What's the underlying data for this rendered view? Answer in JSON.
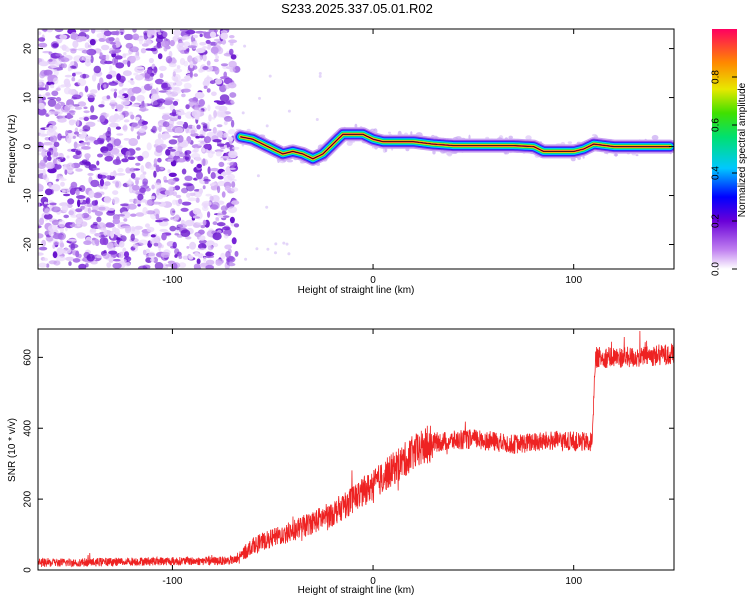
{
  "figure": {
    "title": "S233.2025.337.05.01.R02"
  },
  "colorbar": {
    "label": "Normalized spectral amplitude",
    "ticks": [
      "0.0",
      "0.2",
      "0.4",
      "0.6",
      "0.8"
    ],
    "range": [
      0,
      1
    ]
  },
  "chart_data": [
    {
      "type": "heatmap",
      "title": "",
      "xlabel": "Height of straight line (km)",
      "ylabel": "Frequency (Hz)",
      "xlim": [
        -167,
        150
      ],
      "ylim": [
        -25,
        24
      ],
      "xticks": [
        -100,
        0,
        100
      ],
      "xtick_labels": [
        "-100",
        "0",
        "100"
      ],
      "yticks": [
        -20,
        -10,
        0,
        10,
        20
      ],
      "ytick_labels": [
        "-20",
        "-10",
        "0",
        "10",
        "20"
      ],
      "noise_region_x": [
        -167,
        -68
      ],
      "ridge": {
        "x": [
          -66,
          -60,
          -55,
          -50,
          -45,
          -40,
          -35,
          -30,
          -25,
          -20,
          -15,
          -10,
          -5,
          0,
          5,
          10,
          20,
          30,
          40,
          50,
          60,
          70,
          80,
          85,
          90,
          100,
          105,
          110,
          120,
          130,
          140,
          148
        ],
        "frequency": [
          2.0,
          1.5,
          0.5,
          -0.5,
          -1.5,
          -1.0,
          -1.5,
          -2.5,
          -1.5,
          0.5,
          2.5,
          2.5,
          2.5,
          1.5,
          1.0,
          1.0,
          1.0,
          0.5,
          0.2,
          0.2,
          0.2,
          0.2,
          0.0,
          -1.0,
          -1.0,
          -1.0,
          -0.5,
          0.5,
          0.0,
          0.0,
          0.0,
          0.0
        ]
      }
    },
    {
      "type": "line",
      "title": "",
      "xlabel": "Height of straight line (km)",
      "ylabel": "SNR (10 * v/v)",
      "xlim": [
        -167,
        150
      ],
      "ylim": [
        0,
        680
      ],
      "xticks": [
        -100,
        0,
        100
      ],
      "xtick_labels": [
        "-100",
        "0",
        "100"
      ],
      "yticks": [
        0,
        200,
        400,
        600
      ],
      "ytick_labels": [
        "0",
        "200",
        "400",
        "600"
      ],
      "color": "#ee2222",
      "trend": {
        "x": [
          -167,
          -140,
          -110,
          -80,
          -68,
          -60,
          -40,
          -20,
          0,
          20,
          30,
          50,
          70,
          90,
          109,
          111,
          130,
          150
        ],
        "y": [
          20,
          22,
          25,
          25,
          28,
          70,
          110,
          160,
          240,
          330,
          360,
          370,
          355,
          365,
          360,
          600,
          600,
          610
        ]
      }
    }
  ]
}
